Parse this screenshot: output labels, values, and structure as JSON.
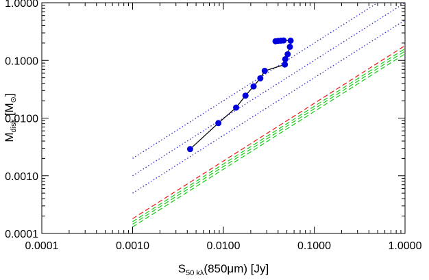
{
  "chart_data": {
    "type": "scatter",
    "title": "",
    "xlabel": "S50 kλ(850μm) [Jy]",
    "xlabel_parts": {
      "main": "S",
      "sub": "50 kλ",
      "rest": "(850μm) [Jy]"
    },
    "ylabel": "Mdisk [M⊙]",
    "ylabel_parts": {
      "main": "M",
      "sub": "disk",
      "rest": " [M",
      "sun": "⊙",
      "close": "]"
    },
    "xscale": "log",
    "yscale": "log",
    "xlim": [
      0.0001,
      1.0
    ],
    "ylim": [
      0.0001,
      1.0
    ],
    "x_ticks": [
      {
        "value": 0.0001,
        "label": "0.0001"
      },
      {
        "value": 0.001,
        "label": "0.0010"
      },
      {
        "value": 0.01,
        "label": "0.0100"
      },
      {
        "value": 0.1,
        "label": "0.1000"
      },
      {
        "value": 1.0,
        "label": "1.0000"
      }
    ],
    "y_ticks": [
      {
        "value": 0.0001,
        "label": "0.0001"
      },
      {
        "value": 0.001,
        "label": "0.0010"
      },
      {
        "value": 0.01,
        "label": "0.0100"
      },
      {
        "value": 0.1,
        "label": "0.1000"
      },
      {
        "value": 1.0,
        "label": "1.0000"
      }
    ],
    "grid": false,
    "legend": "none",
    "series": [
      {
        "style": "points-with-line",
        "color": "#0000dd",
        "points": [
          {
            "x": 0.0043,
            "y": 0.0029
          },
          {
            "x": 0.0088,
            "y": 0.0082
          },
          {
            "x": 0.0138,
            "y": 0.0152
          },
          {
            "x": 0.0175,
            "y": 0.0245
          },
          {
            "x": 0.0215,
            "y": 0.0355
          },
          {
            "x": 0.0255,
            "y": 0.049
          },
          {
            "x": 0.0285,
            "y": 0.066
          },
          {
            "x": 0.0475,
            "y": 0.085
          },
          {
            "x": 0.048,
            "y": 0.105
          },
          {
            "x": 0.051,
            "y": 0.128
          },
          {
            "x": 0.054,
            "y": 0.172
          },
          {
            "x": 0.055,
            "y": 0.22
          },
          {
            "x": 0.046,
            "y": 0.222
          },
          {
            "x": 0.043,
            "y": 0.22
          },
          {
            "x": 0.04,
            "y": 0.218
          },
          {
            "x": 0.0375,
            "y": 0.215
          }
        ],
        "line": [
          {
            "x": 0.0043,
            "y": 0.0029
          },
          {
            "x": 0.0088,
            "y": 0.0082
          },
          {
            "x": 0.0138,
            "y": 0.0152
          },
          {
            "x": 0.0175,
            "y": 0.0245
          },
          {
            "x": 0.0215,
            "y": 0.0355
          },
          {
            "x": 0.0255,
            "y": 0.049
          },
          {
            "x": 0.0285,
            "y": 0.066
          },
          {
            "x": 0.0475,
            "y": 0.085
          },
          {
            "x": 0.048,
            "y": 0.105
          },
          {
            "x": 0.051,
            "y": 0.128
          },
          {
            "x": 0.054,
            "y": 0.172
          },
          {
            "x": 0.055,
            "y": 0.22
          },
          {
            "x": 0.046,
            "y": 0.222
          },
          {
            "x": 0.04,
            "y": 0.218
          }
        ]
      }
    ],
    "reference_lines": [
      {
        "style": "dotted",
        "color": "#3333cc",
        "x": [
          0.001,
          1.0
        ],
        "y": [
          0.002,
          2.0
        ]
      },
      {
        "style": "dotted",
        "color": "#3333cc",
        "x": [
          0.001,
          1.0
        ],
        "y": [
          0.001,
          1.0
        ]
      },
      {
        "style": "dotted",
        "color": "#3333cc",
        "x": [
          0.001,
          1.0
        ],
        "y": [
          0.0005,
          0.5
        ]
      },
      {
        "style": "dashed",
        "color": "#ee2222",
        "x": [
          0.001,
          1.0
        ],
        "y": [
          0.00018,
          0.18
        ]
      },
      {
        "style": "dashed",
        "color": "#22cc22",
        "x": [
          0.001,
          1.0
        ],
        "y": [
          0.00016,
          0.16
        ]
      },
      {
        "style": "dashed",
        "color": "#22cc22",
        "x": [
          0.001,
          1.0
        ],
        "y": [
          0.000145,
          0.145
        ]
      },
      {
        "style": "dashed",
        "color": "#22cc22",
        "x": [
          0.001,
          1.0
        ],
        "y": [
          0.00013,
          0.13
        ]
      }
    ]
  }
}
